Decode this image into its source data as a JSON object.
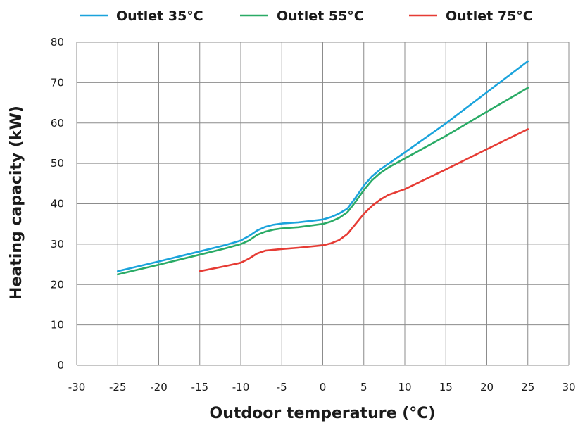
{
  "chart_data": {
    "type": "line",
    "xlabel": "Outdoor temperature (°C)",
    "ylabel": "Heating capacity (kW)",
    "xlim": [
      -30,
      30
    ],
    "ylim": [
      0,
      80
    ],
    "xticks": [
      -30,
      -25,
      -20,
      -15,
      -10,
      -5,
      0,
      5,
      10,
      15,
      20,
      25,
      30
    ],
    "yticks": [
      0,
      10,
      20,
      30,
      40,
      50,
      60,
      70,
      80
    ],
    "grid": true,
    "legend_position": "top",
    "series": [
      {
        "name": "Outlet 35°C",
        "color": "#1aa3dc",
        "x": [
          -25,
          -20,
          -15,
          -12,
          -10,
          -9,
          -8,
          -7,
          -6,
          -5,
          -3,
          0,
          1,
          2,
          3,
          4,
          5,
          6,
          7,
          8,
          10,
          15,
          20,
          25
        ],
        "y": [
          23.3,
          25.7,
          28.2,
          29.7,
          30.9,
          32.0,
          33.4,
          34.3,
          34.8,
          35.1,
          35.4,
          36.1,
          36.7,
          37.6,
          38.8,
          41.5,
          44.5,
          46.8,
          48.5,
          49.9,
          52.7,
          59.9,
          67.6,
          75.3
        ]
      },
      {
        "name": "Outlet 55°C",
        "color": "#2aab66",
        "x": [
          -25,
          -20,
          -15,
          -12,
          -10,
          -9,
          -8,
          -7,
          -6,
          -5,
          -3,
          0,
          1,
          2,
          3,
          4,
          5,
          6,
          7,
          8,
          10,
          15,
          20,
          25
        ],
        "y": [
          22.5,
          24.9,
          27.4,
          28.9,
          30.0,
          30.9,
          32.3,
          33.1,
          33.6,
          33.9,
          34.2,
          35.0,
          35.6,
          36.5,
          37.9,
          40.5,
          43.4,
          45.8,
          47.6,
          49.0,
          51.2,
          56.8,
          62.8,
          68.7
        ]
      },
      {
        "name": "Outlet 75°C",
        "color": "#e63b34",
        "x": [
          -15,
          -12,
          -10,
          -9,
          -8,
          -7,
          -6,
          -5,
          -3,
          0,
          1,
          2,
          3,
          4,
          5,
          6,
          7,
          8,
          10,
          15,
          20,
          25
        ],
        "y": [
          23.3,
          24.5,
          25.4,
          26.4,
          27.7,
          28.4,
          28.6,
          28.8,
          29.1,
          29.7,
          30.2,
          31.0,
          32.5,
          35.0,
          37.5,
          39.5,
          41.0,
          42.2,
          43.6,
          48.5,
          53.5,
          58.5
        ]
      }
    ]
  }
}
